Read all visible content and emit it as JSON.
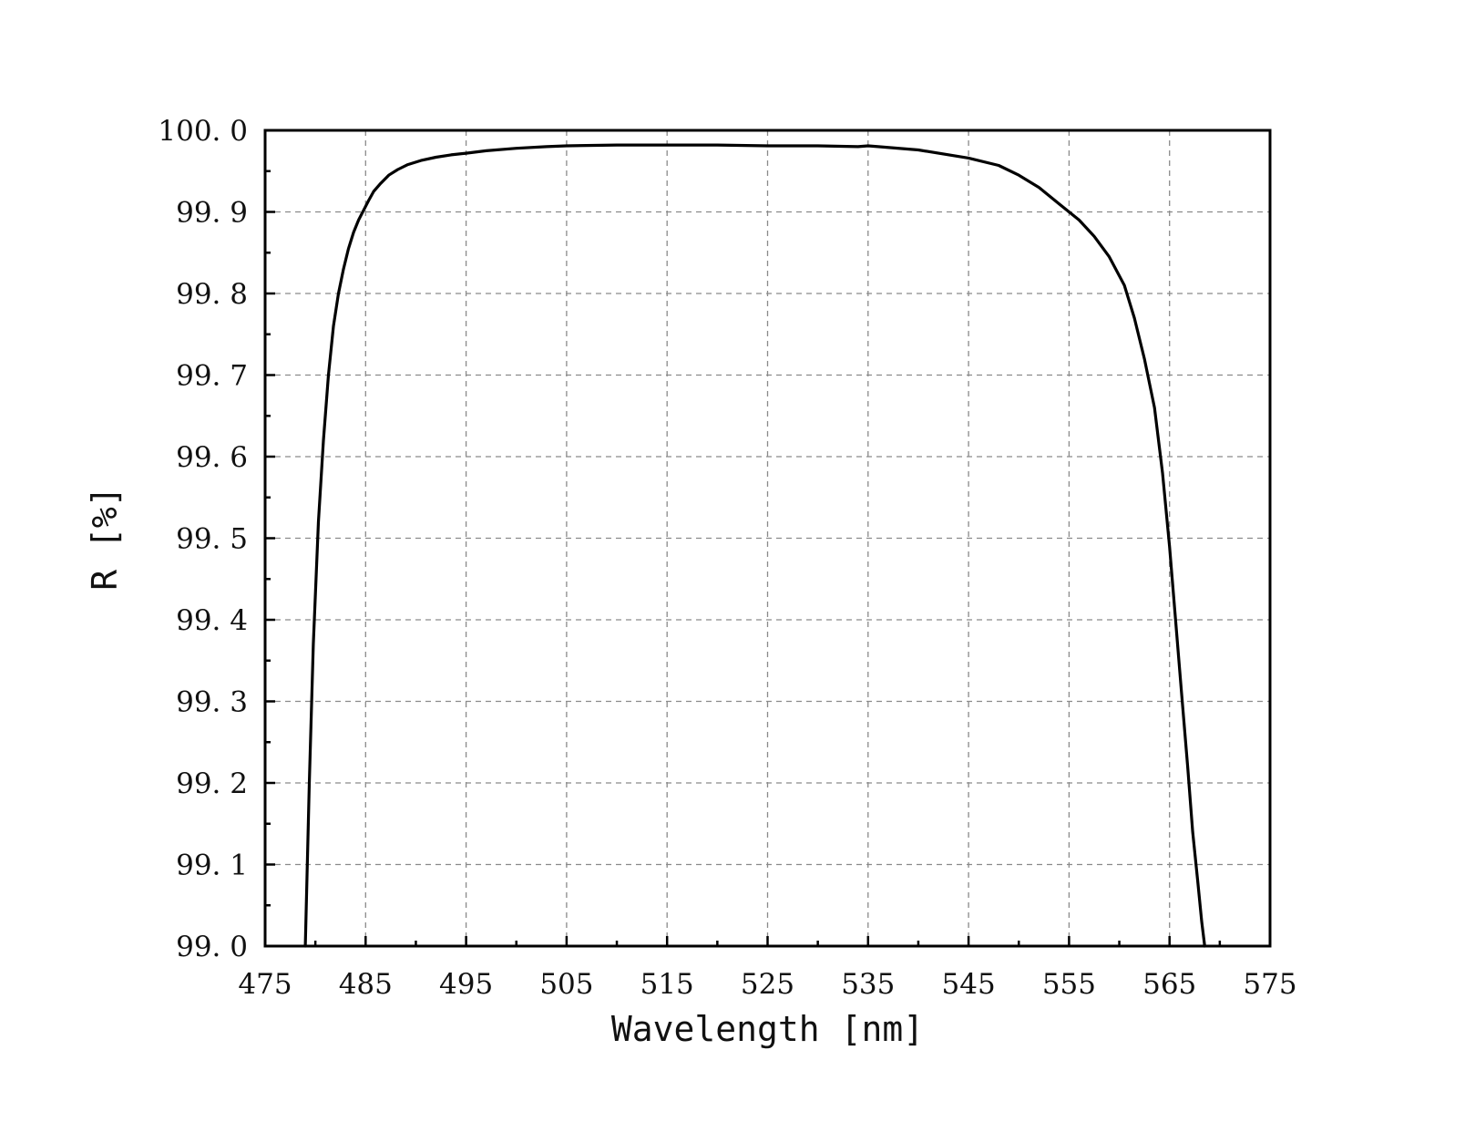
{
  "chart_data": {
    "type": "line",
    "title": "",
    "xlabel": "Wavelength [nm]",
    "ylabel": "R [%]",
    "xlim": [
      475,
      575
    ],
    "ylim": [
      99.0,
      100.0
    ],
    "x_ticks": [
      475,
      485,
      495,
      505,
      515,
      525,
      535,
      545,
      555,
      565,
      575
    ],
    "x_tick_labels": [
      "475",
      "485",
      "495",
      "505",
      "515",
      "525",
      "535",
      "545",
      "555",
      "565",
      "575"
    ],
    "y_ticks": [
      99.0,
      99.1,
      99.2,
      99.3,
      99.4,
      99.5,
      99.6,
      99.7,
      99.8,
      99.9,
      100.0
    ],
    "y_tick_labels": [
      "99. 0",
      "99. 1",
      "99. 2",
      "99. 3",
      "99. 4",
      "99. 5",
      "99. 6",
      "99. 7",
      "99. 8",
      "99. 9",
      "100. 0"
    ],
    "grid": true,
    "legend": "none",
    "line_color": "#000000",
    "series": [
      {
        "x": [
          479.0,
          479.4,
          479.8,
          480.3,
          480.8,
          481.3,
          481.8,
          482.3,
          482.8,
          483.3,
          483.8,
          484.3,
          484.8,
          485.3,
          485.8,
          486.5,
          487.3,
          488.2,
          489.2,
          490.5,
          492.0,
          493.5,
          495.0,
          497.0,
          500.0,
          503.0,
          505.0,
          510.0,
          515.0,
          520.0,
          525.0,
          530.0,
          534.0,
          535.0,
          536.0,
          540.0,
          545.0,
          548.0,
          550.0,
          552.0,
          554.0,
          556.0,
          557.5,
          559.0,
          560.5,
          561.5,
          562.5,
          563.5,
          564.3,
          565.0,
          565.6,
          566.2,
          566.8,
          567.3,
          567.8,
          568.2,
          568.5
        ],
        "y": [
          99.0,
          99.2,
          99.37,
          99.52,
          99.62,
          99.7,
          99.76,
          99.8,
          99.83,
          99.855,
          99.875,
          99.89,
          99.902,
          99.914,
          99.925,
          99.935,
          99.945,
          99.952,
          99.958,
          99.963,
          99.967,
          99.97,
          99.972,
          99.975,
          99.978,
          99.98,
          99.981,
          99.982,
          99.982,
          99.982,
          99.981,
          99.981,
          99.98,
          99.981,
          99.98,
          99.976,
          99.966,
          99.957,
          99.945,
          99.93,
          99.91,
          99.89,
          99.87,
          99.845,
          99.81,
          99.77,
          99.72,
          99.66,
          99.58,
          99.49,
          99.4,
          99.31,
          99.22,
          99.14,
          99.08,
          99.03,
          99.0
        ]
      }
    ]
  }
}
